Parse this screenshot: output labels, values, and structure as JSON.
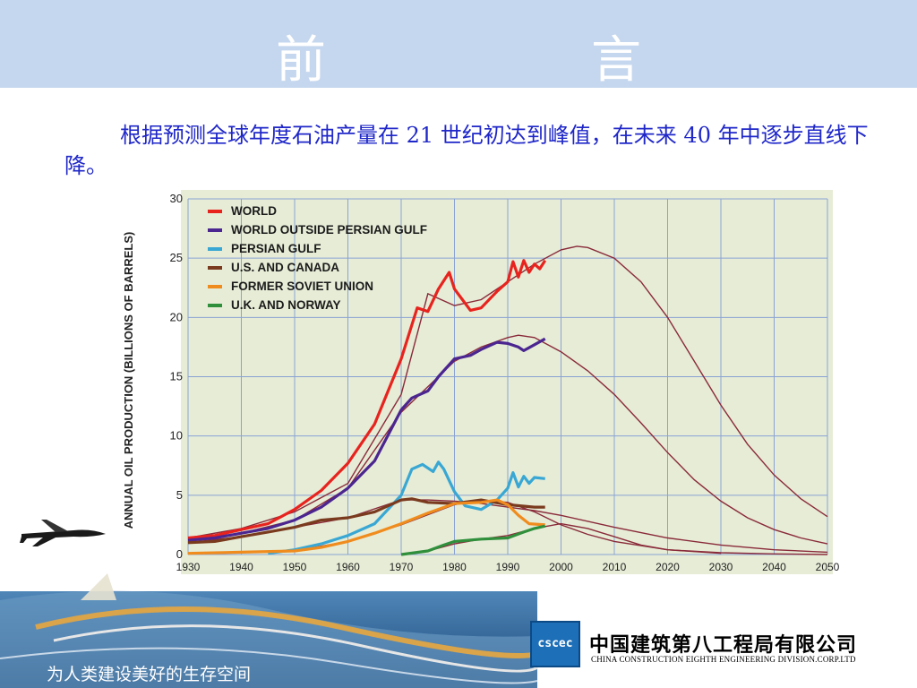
{
  "slide": {
    "title": "前　言",
    "intro": "根据预测全球年度石油产量在 21 世纪初达到峰值，在未来 40 年中逐步直线下降。",
    "footer_slogan": "为人类建设美好的生存空间",
    "company_cn": "中国建筑第八工程局有限公司",
    "company_en": "CHINA CONSTRUCTION EIGHTH ENGINEERING DIVISION.CORP.LTD",
    "logo_text": "cscec"
  },
  "colors": {
    "title_band": "#c5d7ee",
    "intro_text": "#1f27c8",
    "chart_bg": "#e6ecd6",
    "grid": "#8aa3d4",
    "world": "#e8231e",
    "outside_gulf": "#4b2590",
    "persian_gulf": "#39a7d4",
    "us_canada": "#7a3a1e",
    "soviet": "#f08c1e",
    "uk_norway": "#2f8f3b",
    "forecast": "#8a2a3a"
  },
  "chart_data": {
    "type": "line",
    "ylabel": "ANNUAL OIL PRODUCTION (BILLIONS OF BARRELS)",
    "xlabel": "",
    "xlim": [
      1930,
      2050
    ],
    "ylim": [
      0,
      30
    ],
    "x_ticks": [
      1930,
      1940,
      1950,
      1960,
      1970,
      1980,
      1990,
      2000,
      2010,
      2020,
      2030,
      2040,
      2050
    ],
    "y_ticks": [
      0,
      5,
      10,
      15,
      20,
      25,
      30
    ],
    "grid": true,
    "legend_position": "top-left",
    "series": [
      {
        "name": "WORLD",
        "color_key": "world",
        "x": [
          1930,
          1935,
          1940,
          1945,
          1950,
          1955,
          1960,
          1965,
          1970,
          1973,
          1975,
          1977,
          1979,
          1980,
          1983,
          1985,
          1988,
          1990,
          1991,
          1992,
          1993,
          1994,
          1995,
          1996,
          1997
        ],
        "y": [
          1.4,
          1.6,
          2.1,
          2.6,
          3.8,
          5.4,
          7.7,
          11.0,
          16.5,
          20.8,
          20.5,
          22.4,
          23.8,
          22.4,
          20.6,
          20.8,
          22.2,
          23.0,
          24.7,
          23.4,
          24.8,
          23.8,
          24.5,
          24.1,
          24.8
        ]
      },
      {
        "name": "WORLD OUTSIDE PERSIAN GULF",
        "color_key": "outside_gulf",
        "x": [
          1930,
          1935,
          1940,
          1945,
          1950,
          1955,
          1960,
          1965,
          1970,
          1972,
          1975,
          1977,
          1980,
          1983,
          1985,
          1988,
          1990,
          1992,
          1993,
          1995,
          1997
        ],
        "y": [
          1.2,
          1.4,
          1.8,
          2.2,
          2.9,
          4.0,
          5.6,
          7.9,
          12.2,
          13.2,
          13.8,
          15.0,
          16.5,
          16.8,
          17.3,
          17.9,
          17.8,
          17.5,
          17.2,
          17.7,
          18.2
        ]
      },
      {
        "name": "PERSIAN GULF",
        "color_key": "persian_gulf",
        "x": [
          1945,
          1950,
          1955,
          1960,
          1965,
          1970,
          1972,
          1974,
          1976,
          1977,
          1978,
          1980,
          1982,
          1985,
          1988,
          1990,
          1991,
          1992,
          1993,
          1994,
          1995,
          1997
        ],
        "y": [
          0.1,
          0.4,
          0.9,
          1.6,
          2.6,
          5.0,
          7.2,
          7.6,
          7.0,
          7.8,
          7.2,
          5.3,
          4.1,
          3.8,
          4.6,
          5.6,
          6.9,
          5.7,
          6.6,
          6.0,
          6.5,
          6.4
        ]
      },
      {
        "name": "U.S. AND CANADA",
        "color_key": "us_canada",
        "x": [
          1930,
          1935,
          1940,
          1945,
          1950,
          1955,
          1960,
          1965,
          1970,
          1972,
          1975,
          1980,
          1985,
          1990,
          1995,
          1997
        ],
        "y": [
          1.0,
          1.1,
          1.5,
          1.9,
          2.3,
          2.9,
          3.1,
          3.6,
          4.6,
          4.7,
          4.4,
          4.3,
          4.6,
          4.2,
          4.0,
          4.0
        ]
      },
      {
        "name": "FORMER SOVIET UNION",
        "color_key": "soviet",
        "x": [
          1930,
          1940,
          1950,
          1955,
          1960,
          1965,
          1970,
          1975,
          1980,
          1985,
          1988,
          1990,
          1992,
          1994,
          1997
        ],
        "y": [
          0.1,
          0.2,
          0.3,
          0.6,
          1.1,
          1.8,
          2.6,
          3.5,
          4.3,
          4.4,
          4.6,
          4.2,
          3.3,
          2.6,
          2.5
        ]
      },
      {
        "name": "U.K. AND NORWAY",
        "color_key": "uk_norway",
        "x": [
          1970,
          1975,
          1978,
          1980,
          1985,
          1990,
          1993,
          1995,
          1997
        ],
        "y": [
          0.0,
          0.3,
          0.8,
          1.1,
          1.3,
          1.4,
          1.9,
          2.2,
          2.4
        ]
      },
      {
        "color_key": "forecast",
        "x": [
          1930,
          1940,
          1950,
          1960,
          1970,
          1975,
          1980,
          1985,
          1990,
          1995,
          2000,
          2003,
          2005,
          2010,
          2015,
          2020,
          2025,
          2030,
          2035,
          2040,
          2045,
          2050
        ],
        "y": [
          1.4,
          2.2,
          3.6,
          6.0,
          13.5,
          22.0,
          21.0,
          21.5,
          23.0,
          24.5,
          25.7,
          26.0,
          25.9,
          25.0,
          23.0,
          20.0,
          16.3,
          12.6,
          9.3,
          6.7,
          4.7,
          3.2
        ]
      },
      {
        "color_key": "forecast",
        "x": [
          1930,
          1940,
          1950,
          1960,
          1970,
          1980,
          1985,
          1990,
          1992,
          1995,
          2000,
          2005,
          2010,
          2015,
          2020,
          2025,
          2030,
          2035,
          2040,
          2045,
          2050
        ],
        "y": [
          1.2,
          1.8,
          2.9,
          5.6,
          12.0,
          16.3,
          17.5,
          18.3,
          18.5,
          18.3,
          17.1,
          15.5,
          13.5,
          11.1,
          8.6,
          6.3,
          4.5,
          3.1,
          2.1,
          1.4,
          0.9
        ]
      },
      {
        "color_key": "forecast",
        "x": [
          1930,
          1940,
          1950,
          1960,
          1970,
          1975,
          1980,
          1985,
          1990,
          1995,
          2000,
          2010,
          2020,
          2030,
          2040,
          2050
        ],
        "y": [
          1.0,
          1.5,
          2.3,
          3.1,
          4.6,
          4.6,
          4.5,
          4.3,
          4.0,
          3.7,
          3.3,
          2.3,
          1.4,
          0.8,
          0.4,
          0.2
        ]
      },
      {
        "color_key": "forecast",
        "x": [
          1930,
          1950,
          1960,
          1970,
          1980,
          1985,
          1990,
          1995,
          2000,
          2005,
          2010,
          2020,
          2030,
          2040,
          2050
        ],
        "y": [
          0.1,
          0.3,
          1.1,
          2.5,
          4.2,
          4.6,
          4.4,
          3.6,
          2.5,
          1.7,
          1.1,
          0.4,
          0.15,
          0.05,
          0.0
        ]
      },
      {
        "color_key": "forecast",
        "x": [
          1970,
          1975,
          1980,
          1985,
          1990,
          1995,
          2000,
          2005,
          2010,
          2015,
          2020,
          2030
        ],
        "y": [
          0.0,
          0.3,
          0.9,
          1.3,
          1.6,
          2.2,
          2.6,
          2.2,
          1.5,
          0.8,
          0.4,
          0.1
        ]
      }
    ]
  }
}
